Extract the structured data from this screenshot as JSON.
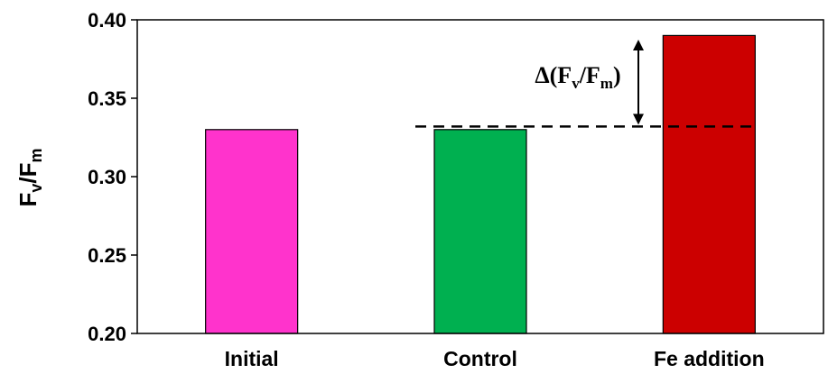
{
  "chart_data": {
    "type": "bar",
    "categories": [
      "Initial",
      "Control",
      "Fe addition"
    ],
    "values": [
      0.33,
      0.33,
      0.39
    ],
    "colors": [
      "#ff33cc",
      "#00b050",
      "#cc0000"
    ],
    "ylabel": {
      "base": "F",
      "sub1": "v",
      "mid": "/F",
      "sub2": "m"
    },
    "ylim": [
      0.2,
      0.4
    ],
    "yticks": [
      "0.20",
      "0.25",
      "0.30",
      "0.35",
      "0.40"
    ],
    "grid": false,
    "annotation": {
      "text": {
        "pre": "Δ(F",
        "sub1": "v",
        "mid": "/F",
        "sub2": "m",
        "post": ")"
      },
      "reference_line_value": 0.332,
      "style": "dashed reference line with double-headed arrow to Fe addition bar"
    }
  }
}
